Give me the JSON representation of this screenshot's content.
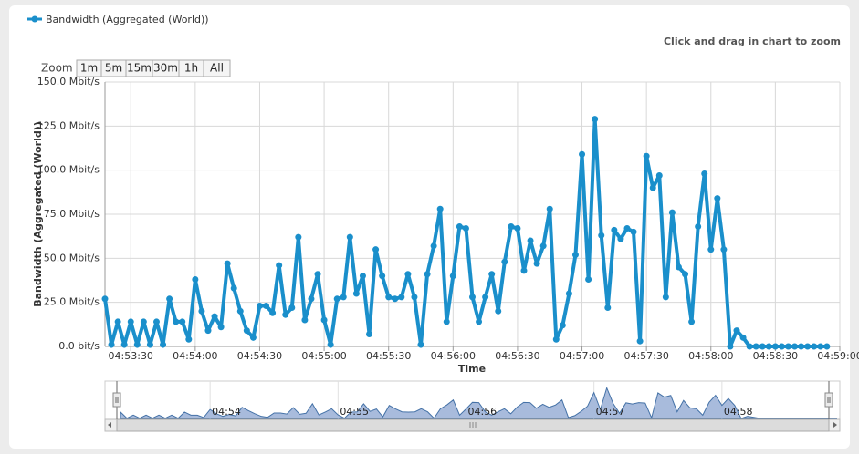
{
  "chart_data": {
    "type": "line",
    "note": "Click and drag in chart to zoom",
    "zoom": {
      "label": "Zoom",
      "buttons": [
        "1m",
        "5m",
        "15m",
        "30m",
        "1h",
        "All"
      ]
    },
    "y_label": "Bandwidth (Aggregated (World))",
    "x_label": "Time",
    "x": [
      "04:53:18",
      "04:53:21",
      "04:53:24",
      "04:53:27",
      "04:53:30",
      "04:53:33",
      "04:53:36",
      "04:53:39",
      "04:53:42",
      "04:53:45",
      "04:53:48",
      "04:53:51",
      "04:53:54",
      "04:53:57",
      "04:54:00",
      "04:54:03",
      "04:54:06",
      "04:54:09",
      "04:54:12",
      "04:54:15",
      "04:54:18",
      "04:54:21",
      "04:54:24",
      "04:54:27",
      "04:54:30",
      "04:54:33",
      "04:54:36",
      "04:54:39",
      "04:54:42",
      "04:54:45",
      "04:54:48",
      "04:54:51",
      "04:54:54",
      "04:54:57",
      "04:55:00",
      "04:55:03",
      "04:55:06",
      "04:55:09",
      "04:55:12",
      "04:55:15",
      "04:55:18",
      "04:55:21",
      "04:55:24",
      "04:55:27",
      "04:55:30",
      "04:55:33",
      "04:55:36",
      "04:55:39",
      "04:55:42",
      "04:55:45",
      "04:55:48",
      "04:55:51",
      "04:55:54",
      "04:55:57",
      "04:56:00",
      "04:56:03",
      "04:56:06",
      "04:56:09",
      "04:56:12",
      "04:56:15",
      "04:56:18",
      "04:56:21",
      "04:56:24",
      "04:56:27",
      "04:56:30",
      "04:56:33",
      "04:56:36",
      "04:56:39",
      "04:56:42",
      "04:56:45",
      "04:56:48",
      "04:56:51",
      "04:56:54",
      "04:56:57",
      "04:57:00",
      "04:57:03",
      "04:57:06",
      "04:57:09",
      "04:57:12",
      "04:57:15",
      "04:57:18",
      "04:57:21",
      "04:57:24",
      "04:57:27",
      "04:57:30",
      "04:57:33",
      "04:57:36",
      "04:57:39",
      "04:57:42",
      "04:57:45",
      "04:57:48",
      "04:57:51",
      "04:57:54",
      "04:57:57",
      "04:58:00",
      "04:58:03",
      "04:58:06",
      "04:58:09",
      "04:58:12",
      "04:58:15",
      "04:58:18",
      "04:58:21",
      "04:58:24",
      "04:58:27",
      "04:58:30",
      "04:58:33",
      "04:58:36",
      "04:58:39",
      "04:58:42",
      "04:58:45",
      "04:58:48",
      "04:58:51",
      "04:58:54"
    ],
    "series": [
      {
        "name": "Bandwidth (Aggregated (World))",
        "color": "#1a8fcb",
        "values": [
          27,
          1,
          14,
          1,
          14,
          1,
          14,
          1,
          14,
          1,
          27,
          14,
          14,
          4,
          38,
          20,
          9,
          17,
          11,
          47,
          33,
          20,
          9,
          5,
          23,
          23,
          19,
          46,
          18,
          22,
          62,
          15,
          27,
          41,
          15,
          1,
          27,
          28,
          62,
          30,
          40,
          7,
          55,
          40,
          28,
          27,
          28,
          41,
          28,
          1,
          41,
          57,
          78,
          14,
          40,
          68,
          67,
          28,
          14,
          28,
          41,
          20,
          48,
          68,
          67,
          43,
          60,
          47,
          57,
          78,
          4,
          12,
          30,
          52,
          109,
          38,
          129,
          63,
          22,
          66,
          61,
          67,
          65,
          3,
          108,
          90,
          97,
          28,
          76,
          45,
          41,
          14,
          68,
          98,
          55,
          84,
          55,
          0,
          9,
          5,
          0,
          0,
          0,
          0,
          0,
          0,
          0,
          0,
          0,
          0,
          0,
          0,
          0
        ]
      }
    ],
    "xlim": [
      "04:53:18",
      "04:59:00"
    ],
    "xticks": [
      "04:53:30",
      "04:54:00",
      "04:54:30",
      "04:55:00",
      "04:55:30",
      "04:56:00",
      "04:56:30",
      "04:57:00",
      "04:57:30",
      "04:58:00",
      "04:58:30",
      "04:59:00"
    ],
    "ylim": [
      0,
      150
    ],
    "yticks": [
      {
        "value": 0,
        "label": "0.0 bit/s"
      },
      {
        "value": 25,
        "label": "25.0 Mbit/s"
      },
      {
        "value": 50,
        "label": "50.0 Mbit/s"
      },
      {
        "value": 75,
        "label": "75.0 Mbit/s"
      },
      {
        "value": 100,
        "label": "100.0 Mbit/s"
      },
      {
        "value": 125,
        "label": "125.0 Mbit/s"
      },
      {
        "value": 150,
        "label": "150.0 Mbit/s"
      }
    ],
    "grid": true,
    "navigator": {
      "xlim": [
        "04:53:12",
        "04:58:51"
      ],
      "color": "#a8bbdc",
      "line_color": "#4572a7",
      "xticks": [
        {
          "value": "04:54:00",
          "label": "04:54"
        },
        {
          "value": "04:55:00",
          "label": "04:55"
        },
        {
          "value": "04:56:00",
          "label": "04:56"
        },
        {
          "value": "04:57:00",
          "label": "04:57"
        },
        {
          "value": "04:58:00",
          "label": "04:58"
        }
      ]
    }
  }
}
